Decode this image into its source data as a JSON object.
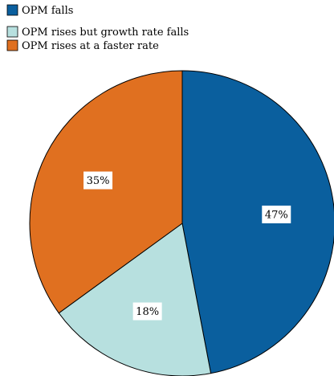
{
  "chart_data": {
    "type": "pie",
    "categories": [
      "OPM falls",
      "OPM rises but growth rate falls",
      "OPM rises at a faster rate"
    ],
    "values": [
      47,
      18,
      35
    ],
    "data_labels": [
      "47%",
      "18%",
      "35%"
    ],
    "colors": [
      "#0a5f9e",
      "#b7e0df",
      "#e07020"
    ],
    "start_angle_deg": 0,
    "direction": "clockwise",
    "legend": {
      "placement": "top-left",
      "entries": [
        "OPM falls",
        "OPM rises but growth rate falls",
        "OPM rises at a faster rate"
      ]
    },
    "title": "",
    "xlabel": "",
    "ylabel": ""
  }
}
